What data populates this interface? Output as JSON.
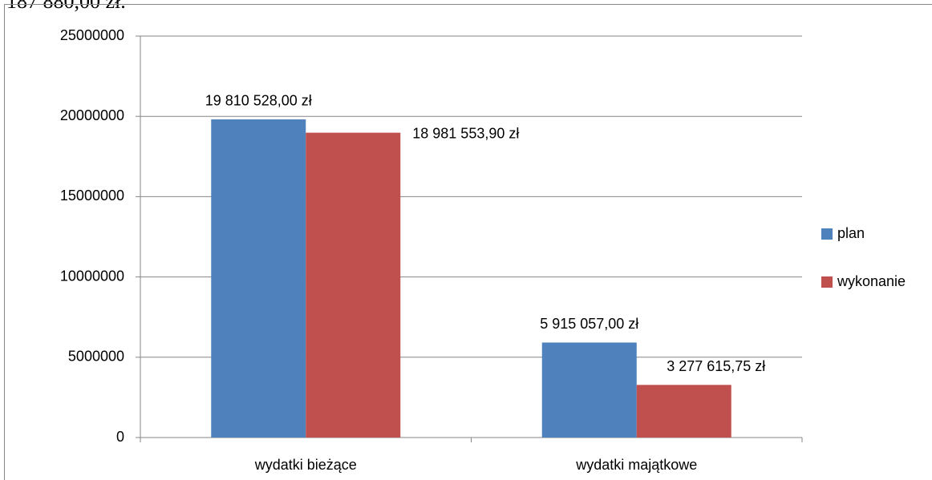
{
  "cropped_text": "187 880,00 zł.",
  "chart_data": {
    "type": "bar",
    "categories": [
      "wydatki bieżące",
      "wydatki majątkowe"
    ],
    "series": [
      {
        "name": "plan",
        "color": "#4f81bd",
        "values": [
          19810528.0,
          5915057.0
        ],
        "value_labels": [
          "19 810 528,00 zł",
          "5 915 057,00 zł"
        ]
      },
      {
        "name": "wykonanie",
        "color": "#c0504d",
        "values": [
          18981553.9,
          3277615.75
        ],
        "value_labels": [
          "18 981 553,90 zł",
          "3 277 615,75 zł"
        ]
      }
    ],
    "ylim": [
      0,
      25000000
    ],
    "yticks": [
      0,
      5000000,
      10000000,
      15000000,
      20000000,
      25000000
    ],
    "grid": true,
    "legend": "right"
  }
}
